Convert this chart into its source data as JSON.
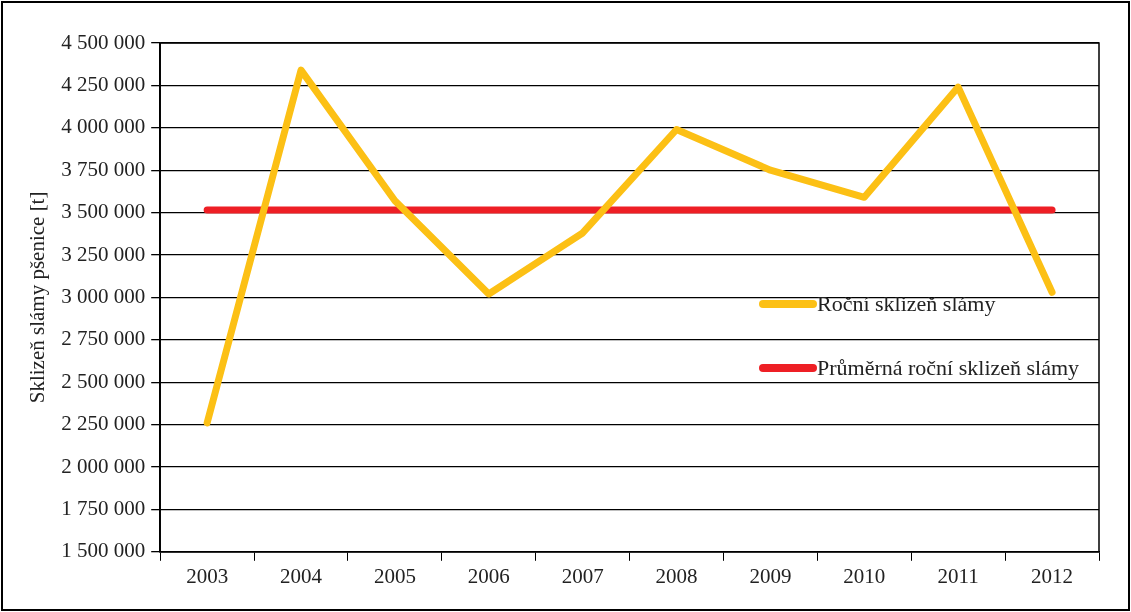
{
  "chart_data": {
    "type": "line",
    "ylabel": "Sklizeň slámy pšenice [t]",
    "categories": [
      "2003",
      "2004",
      "2005",
      "2006",
      "2007",
      "2008",
      "2009",
      "2010",
      "2011",
      "2012"
    ],
    "series": [
      {
        "name": "Roční sklizeň slámy",
        "color": "#fcc015",
        "values": [
          2260000,
          4340000,
          3570000,
          3020000,
          3380000,
          3990000,
          3750000,
          3590000,
          4240000,
          3030000
        ]
      },
      {
        "name": "Průměrná roční sklizeň slámy",
        "color": "#ee1f25",
        "values": [
          3515000,
          3515000,
          3515000,
          3515000,
          3515000,
          3515000,
          3515000,
          3515000,
          3515000,
          3515000
        ]
      }
    ],
    "ylim": [
      1500000,
      4500000
    ],
    "yticks": [
      {
        "value": 1500000,
        "label": "1 500 000"
      },
      {
        "value": 1750000,
        "label": "1 750 000"
      },
      {
        "value": 2000000,
        "label": "2 000 000"
      },
      {
        "value": 2250000,
        "label": "2 250 000"
      },
      {
        "value": 2500000,
        "label": "2 500 000"
      },
      {
        "value": 2750000,
        "label": "2 750 000"
      },
      {
        "value": 3000000,
        "label": "3 000 000"
      },
      {
        "value": 3250000,
        "label": "3 250 000"
      },
      {
        "value": 3500000,
        "label": "3 500 000"
      },
      {
        "value": 3750000,
        "label": "3 750 000"
      },
      {
        "value": 4000000,
        "label": "4 000 000"
      },
      {
        "value": 4250000,
        "label": "4 250 000"
      },
      {
        "value": 4500000,
        "label": "4 500 000"
      }
    ],
    "grid": "y",
    "legend": "right",
    "marker": "none",
    "line_style": "solid"
  }
}
